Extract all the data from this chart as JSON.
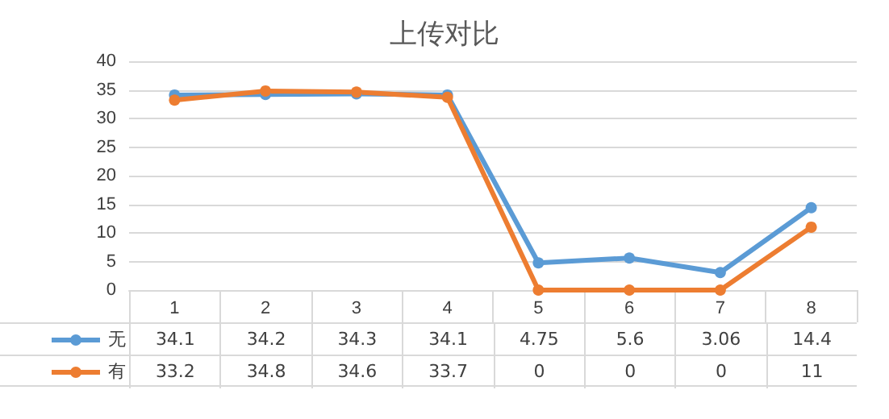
{
  "chart_data": {
    "type": "line",
    "title": "上传对比",
    "categories": [
      "1",
      "2",
      "3",
      "4",
      "5",
      "6",
      "7",
      "8"
    ],
    "series": [
      {
        "name": "无",
        "color": "#5b9bd5",
        "values": [
          34.1,
          34.2,
          34.3,
          34.1,
          4.75,
          5.6,
          3.06,
          14.4
        ]
      },
      {
        "name": "有",
        "color": "#ed7d31",
        "values": [
          33.2,
          34.8,
          34.6,
          33.7,
          0,
          0,
          0,
          11
        ]
      }
    ],
    "ylim": [
      0,
      40
    ],
    "yticks": [
      0,
      5,
      10,
      15,
      20,
      25,
      30,
      35,
      40
    ],
    "grid": "y",
    "legend": "bottom",
    "marker": "circle",
    "line_style": "solid",
    "data_labels": true
  }
}
